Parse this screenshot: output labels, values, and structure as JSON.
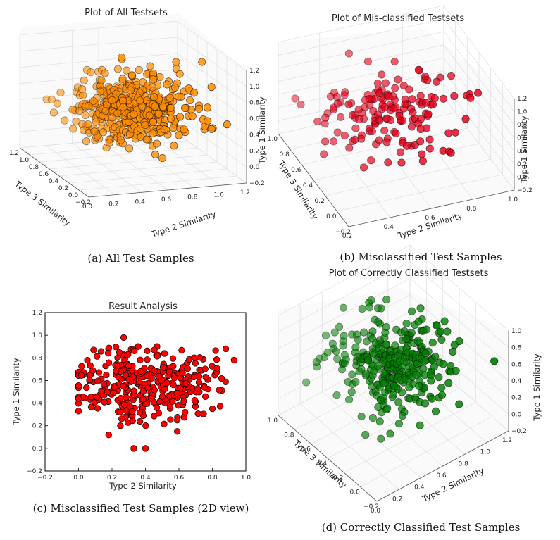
{
  "chart_data": [
    {
      "id": "a",
      "type": "scatter3d",
      "title": "Plot of All Testsets",
      "caption": "(a) All Test Samples",
      "xlabel": "Type 2 Similarity",
      "ylabel": "Type 3 Similarity",
      "zlabel": "Type 1 Similarity",
      "x_ticks": [
        "0.0",
        "0.2",
        "0.4",
        "0.6",
        "0.8",
        "1.0",
        "1.2"
      ],
      "y_ticks": [
        "−0.2",
        "0.0",
        "0.2",
        "0.4",
        "0.6",
        "0.8",
        "1.0",
        "1.2"
      ],
      "z_ticks": [
        "−0.2",
        "0.0",
        "0.2",
        "0.4",
        "0.6",
        "0.8",
        "1.0",
        "1.2"
      ],
      "xlim": [
        0.0,
        1.2
      ],
      "ylim": [
        -0.2,
        1.2
      ],
      "zlim": [
        -0.2,
        1.2
      ],
      "color": "#ff8c00",
      "n_points": 420,
      "seed": 11,
      "x_mean": 0.55,
      "x_sd": 0.22,
      "y_mean": 0.35,
      "y_sd": 0.25,
      "z_mean": 0.6,
      "z_sd": 0.2
    },
    {
      "id": "b",
      "type": "scatter3d",
      "title": "Plot of Mis-classified Testsets",
      "caption": "(b) Misclassified Test Samples",
      "xlabel": "Type 2 Similarity",
      "ylabel": "Type 3 Similarity",
      "zlabel": "Type 1 Similarity",
      "x_ticks": [
        "0.2",
        "0.4",
        "0.6",
        "0.8",
        "1.0"
      ],
      "y_ticks": [
        "−0.2",
        "0.0",
        "0.2",
        "0.4",
        "0.6",
        "0.8",
        "1.0"
      ],
      "z_ticks": [
        "−0.2",
        "0.0",
        "0.2",
        "0.4",
        "0.6",
        "0.8",
        "1.0",
        "1.2"
      ],
      "xlim": [
        0.2,
        1.0
      ],
      "ylim": [
        -0.2,
        1.0
      ],
      "zlim": [
        -0.2,
        1.2
      ],
      "color": "#e8001c",
      "n_points": 160,
      "seed": 23,
      "x_mean": 0.55,
      "x_sd": 0.18,
      "y_mean": 0.35,
      "y_sd": 0.22,
      "z_mean": 0.6,
      "z_sd": 0.18
    },
    {
      "id": "c",
      "type": "scatter",
      "title": "Result Analysis",
      "caption": "(c) Misclassified Test Samples (2D view)",
      "xlabel": "Type 2 Similarity",
      "ylabel": "Type 1 Similarity",
      "x_ticks": [
        "−0.2",
        "0.0",
        "0.2",
        "0.4",
        "0.6",
        "0.8",
        "1.0"
      ],
      "y_ticks": [
        "−0.2",
        "0.0",
        "0.2",
        "0.4",
        "0.6",
        "0.8",
        "1.0",
        "1.2"
      ],
      "xlim": [
        -0.2,
        1.0
      ],
      "ylim": [
        -0.2,
        1.2
      ],
      "color": "#ff0000",
      "n_points": 340,
      "seed": 37,
      "x_mean": 0.4,
      "x_sd": 0.2,
      "y_mean": 0.58,
      "y_sd": 0.16,
      "fixed_points": [
        [
          0.33,
          0.0
        ],
        [
          0.4,
          0.0
        ],
        [
          0.18,
          0.12
        ],
        [
          0.27,
          0.98
        ],
        [
          0.09,
          0.87
        ],
        [
          0.88,
          0.88
        ],
        [
          0.93,
          0.78
        ],
        [
          0.0,
          0.33
        ],
        [
          0.0,
          0.44
        ],
        [
          0.59,
          0.15
        ]
      ]
    },
    {
      "id": "d",
      "type": "scatter3d",
      "title": "Plot of Correctly Classified Testsets",
      "caption": "(d) Correctly Classified Test Samples",
      "xlabel": "Type 2 Similarity",
      "ylabel": "Type 3 Similarity",
      "zlabel": "Type 1 Similarity",
      "x_ticks": [
        "0.0",
        "0.2",
        "0.4",
        "0.6",
        "0.8",
        "1.0",
        "1.2"
      ],
      "y_ticks": [
        "−0.2",
        "0.0",
        "0.2",
        "0.4",
        "0.6",
        "0.8",
        "1.0"
      ],
      "z_ticks": [
        "−0.2",
        "0.0",
        "0.2",
        "0.4",
        "0.6",
        "0.8",
        "1.0"
      ],
      "xlim": [
        0.0,
        1.2
      ],
      "ylim": [
        -0.2,
        1.0
      ],
      "zlim": [
        -0.2,
        1.0
      ],
      "color": "#008000",
      "n_points": 320,
      "seed": 53,
      "x_mean": 0.55,
      "x_sd": 0.22,
      "y_mean": 0.35,
      "y_sd": 0.25,
      "z_mean": 0.6,
      "z_sd": 0.2
    }
  ]
}
